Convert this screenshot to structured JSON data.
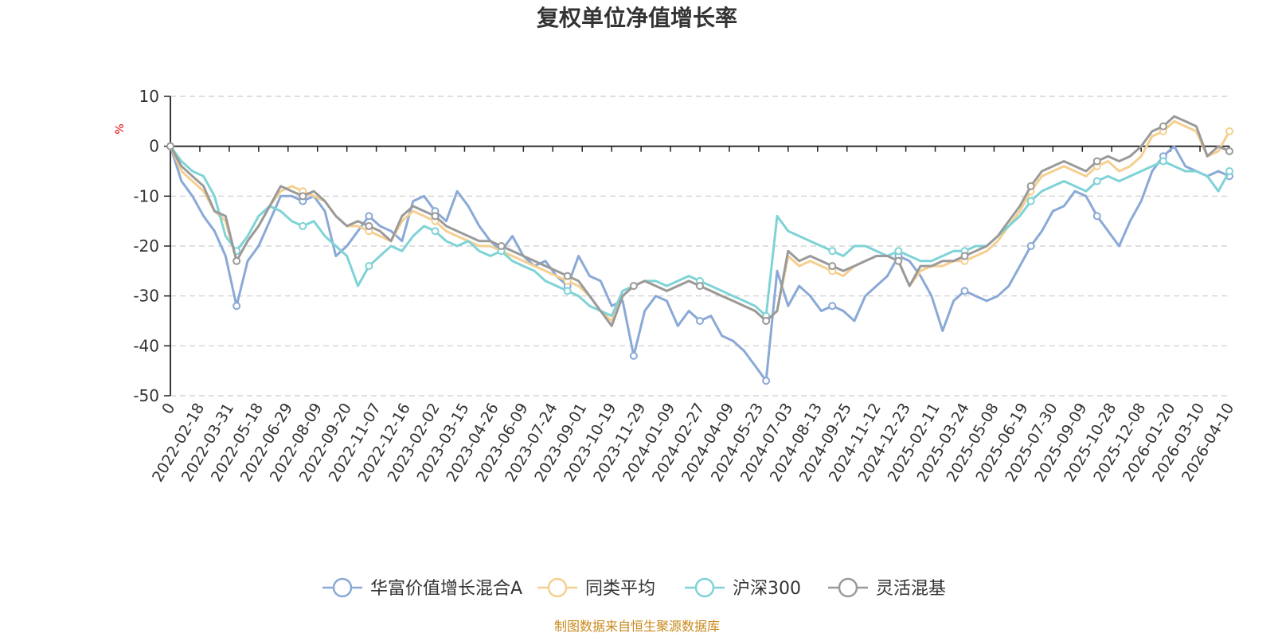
{
  "colors": {
    "fund": "#8aa9d6",
    "peer_avg": "#f5cf8f",
    "csi300": "#7fd3d6",
    "category": "#9a9a9a",
    "grid": "#cccccc",
    "axis": "#222222"
  },
  "chart_data": {
    "type": "line",
    "title": "复权单位净值增长率",
    "ylabel": "%",
    "xlabel": "",
    "ylim": [
      -50,
      10
    ],
    "yticks": [
      10,
      0,
      -10,
      -20,
      -30,
      -40,
      -50
    ],
    "grid": true,
    "legend_position": "bottom-center",
    "source_note": "制图数据来自恒生聚源数据库",
    "x_tick_labels": [
      "0",
      "2022-02-18",
      "2022-03-31",
      "2022-05-18",
      "2022-06-29",
      "2022-08-09",
      "2022-09-20",
      "2022-11-07",
      "2022-12-16",
      "2023-02-02",
      "2023-03-15",
      "2023-04-26",
      "2023-06-09",
      "2023-07-24",
      "2023-09-01",
      "2023-10-19",
      "2023-11-29",
      "2024-01-09",
      "2024-02-27",
      "2024-04-09",
      "2024-05-23",
      "2024-07-03",
      "2024-08-13",
      "2024-09-25",
      "2024-11-12",
      "2024-12-23",
      "2025-02-11",
      "2025-03-24",
      "2025-05-08",
      "2025-06-19",
      "2025-07-30",
      "2025-09-09",
      "2025-10-28",
      "2025-12-08",
      "2026-01-20",
      "2026-03-10",
      "2026-04-10"
    ],
    "series": [
      {
        "name": "华富价值增长混合A",
        "color_key": "fund",
        "values": [
          0,
          -7,
          -10,
          -14,
          -17,
          -22,
          -32,
          -23,
          -20,
          -15,
          -10,
          -10,
          -11,
          -10,
          -13,
          -22,
          -20,
          -17,
          -14,
          -16,
          -17,
          -19,
          -11,
          -10,
          -13,
          -15,
          -9,
          -12,
          -16,
          -19,
          -21,
          -18,
          -22,
          -24,
          -23,
          -26,
          -28,
          -22,
          -26,
          -27,
          -32,
          -31,
          -42,
          -33,
          -30,
          -31,
          -36,
          -33,
          -35,
          -34,
          -38,
          -39,
          -41,
          -44,
          -47,
          -25,
          -32,
          -28,
          -30,
          -33,
          -32,
          -33,
          -35,
          -30,
          -28,
          -26,
          -22,
          -23,
          -26,
          -30,
          -37,
          -31,
          -29,
          -30,
          -31,
          -30,
          -28,
          -24,
          -20,
          -17,
          -13,
          -12,
          -9,
          -10,
          -14,
          -17,
          -20,
          -15,
          -11,
          -5,
          -2,
          0,
          -4,
          -5,
          -6,
          -5,
          -6
        ]
      },
      {
        "name": "同类平均",
        "color_key": "peer_avg",
        "values": [
          0,
          -5,
          -7,
          -9,
          -13,
          -15,
          -23,
          -19,
          -16,
          -12,
          -9,
          -8,
          -9,
          -10,
          -11,
          -14,
          -16,
          -16,
          -17,
          -18,
          -19,
          -15,
          -13,
          -14,
          -15,
          -17,
          -18,
          -19,
          -20,
          -20,
          -21,
          -22,
          -23,
          -24,
          -25,
          -26,
          -27,
          -28,
          -30,
          -33,
          -35,
          -30,
          -28,
          -27,
          -28,
          -29,
          -28,
          -27,
          -28,
          -29,
          -30,
          -31,
          -32,
          -33,
          -35,
          -33,
          -22,
          -24,
          -23,
          -24,
          -25,
          -26,
          -24,
          -23,
          -22,
          -22,
          -23,
          -28,
          -25,
          -24,
          -24,
          -23,
          -23,
          -22,
          -21,
          -19,
          -16,
          -13,
          -9,
          -6,
          -5,
          -4,
          -5,
          -6,
          -4,
          -3,
          -5,
          -4,
          -2,
          2,
          3,
          5,
          4,
          3,
          -2,
          -1,
          3
        ]
      },
      {
        "name": "沪深300",
        "color_key": "csi300",
        "values": [
          0,
          -3,
          -5,
          -6,
          -10,
          -18,
          -21,
          -18,
          -14,
          -12,
          -13,
          -15,
          -16,
          -15,
          -18,
          -20,
          -22,
          -28,
          -24,
          -22,
          -20,
          -21,
          -18,
          -16,
          -17,
          -19,
          -20,
          -19,
          -21,
          -22,
          -21,
          -23,
          -24,
          -25,
          -27,
          -28,
          -29,
          -30,
          -32,
          -33,
          -34,
          -29,
          -28,
          -27,
          -27,
          -28,
          -27,
          -26,
          -27,
          -28,
          -29,
          -30,
          -31,
          -32,
          -34,
          -14,
          -17,
          -18,
          -19,
          -20,
          -21,
          -22,
          -20,
          -20,
          -21,
          -22,
          -21,
          -22,
          -23,
          -23,
          -22,
          -21,
          -21,
          -20,
          -20,
          -18,
          -16,
          -14,
          -11,
          -9,
          -8,
          -7,
          -8,
          -9,
          -7,
          -6,
          -7,
          -6,
          -5,
          -4,
          -3,
          -4,
          -5,
          -5,
          -6,
          -9,
          -5
        ]
      },
      {
        "name": "灵活混基",
        "color_key": "category",
        "values": [
          0,
          -4,
          -6,
          -8,
          -13,
          -14,
          -23,
          -19,
          -16,
          -12,
          -8,
          -9,
          -10,
          -9,
          -11,
          -14,
          -16,
          -15,
          -16,
          -17,
          -19,
          -14,
          -12,
          -13,
          -14,
          -16,
          -17,
          -18,
          -19,
          -19,
          -20,
          -21,
          -22,
          -23,
          -24,
          -25,
          -26,
          -27,
          -30,
          -33,
          -36,
          -30,
          -28,
          -27,
          -28,
          -29,
          -28,
          -27,
          -28,
          -29,
          -30,
          -31,
          -32,
          -33,
          -35,
          -33,
          -21,
          -23,
          -22,
          -23,
          -24,
          -25,
          -24,
          -23,
          -22,
          -22,
          -23,
          -28,
          -24,
          -24,
          -23,
          -23,
          -22,
          -21,
          -20,
          -18,
          -15,
          -12,
          -8,
          -5,
          -4,
          -3,
          -4,
          -5,
          -3,
          -2,
          -3,
          -2,
          0,
          3,
          4,
          6,
          5,
          4,
          -2,
          0,
          -1
        ]
      }
    ]
  }
}
